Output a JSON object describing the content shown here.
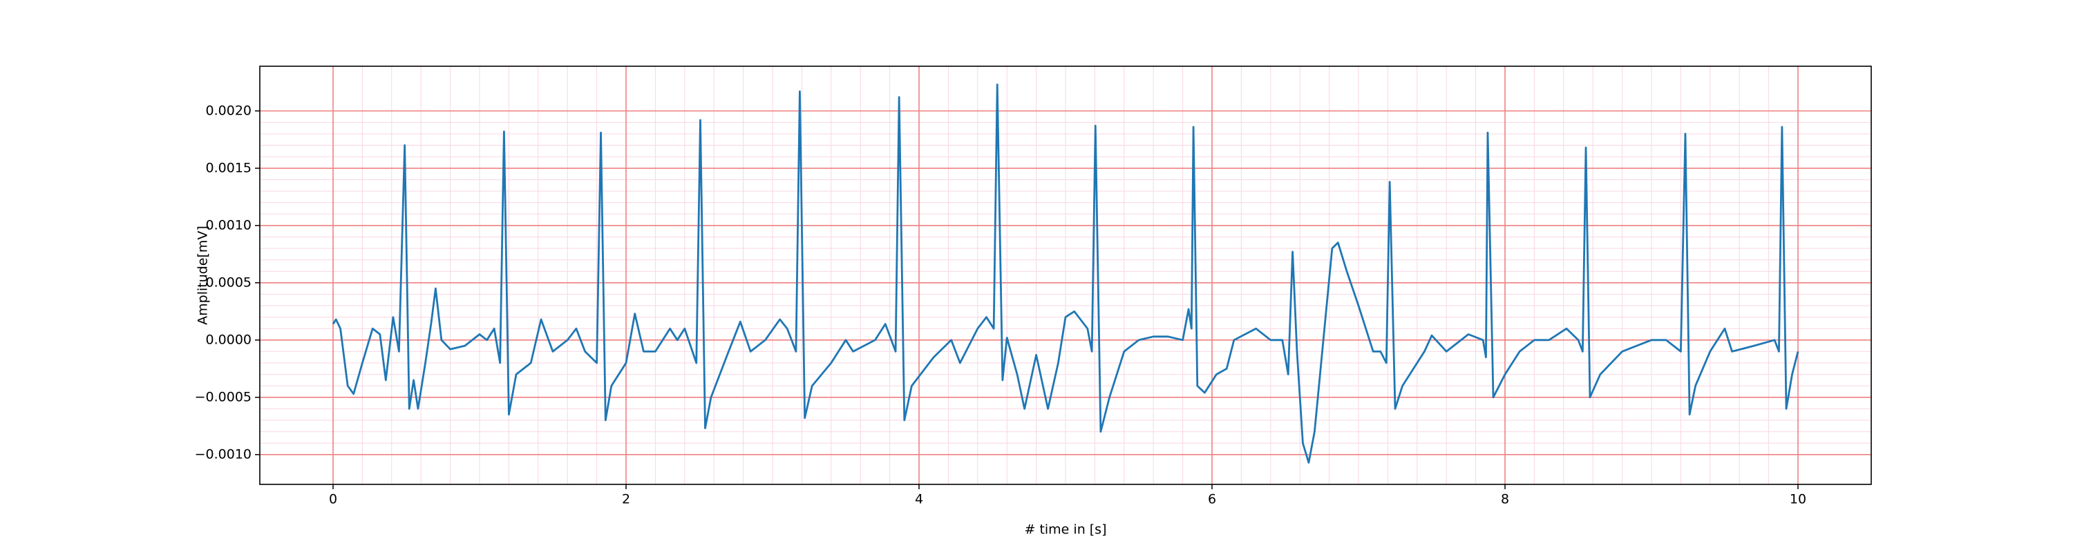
{
  "chart_data": {
    "type": "line",
    "xlabel": "# time in [s]",
    "ylabel": "Amplitude[mV]",
    "xlim": [
      -0.5,
      10.5
    ],
    "ylim": [
      -0.00126,
      0.00239
    ],
    "xticks": [
      0,
      2,
      4,
      6,
      8,
      10
    ],
    "yticks": [
      {
        "value": -0.001,
        "label": "−0.0010"
      },
      {
        "value": -0.0005,
        "label": "−0.0005"
      },
      {
        "value": 0,
        "label": "0.0000"
      },
      {
        "value": 0.0005,
        "label": "0.0005"
      },
      {
        "value": 0.001,
        "label": "0.0010"
      },
      {
        "value": 0.0015,
        "label": "0.0015"
      },
      {
        "value": 0.002,
        "label": "0.0020"
      }
    ],
    "grid": true,
    "minor_grid": true,
    "grid_color": "#f08080",
    "minor_grid_color": "#f9d6e4",
    "x": [
      0,
      0.02,
      0.05,
      0.1,
      0.14,
      0.2,
      0.27,
      0.32,
      0.36,
      0.41,
      0.45,
      0.489,
      0.52,
      0.55,
      0.58,
      0.63,
      0.67,
      0.7,
      0.74,
      0.8,
      0.9,
      1.0,
      1.05,
      1.1,
      1.14,
      1.167,
      1.2,
      1.25,
      1.35,
      1.42,
      1.5,
      1.6,
      1.66,
      1.72,
      1.8,
      1.828,
      1.86,
      1.9,
      2.0,
      2.06,
      2.12,
      2.2,
      2.3,
      2.35,
      2.4,
      2.48,
      2.507,
      2.54,
      2.58,
      2.7,
      2.78,
      2.85,
      2.95,
      3.05,
      3.1,
      3.16,
      3.186,
      3.22,
      3.27,
      3.4,
      3.5,
      3.55,
      3.7,
      3.77,
      3.84,
      3.864,
      3.9,
      3.95,
      4.1,
      4.22,
      4.28,
      4.4,
      4.46,
      4.51,
      4.534,
      4.57,
      4.6,
      4.67,
      4.72,
      4.8,
      4.88,
      4.95,
      5.0,
      5.06,
      5.15,
      5.18,
      5.204,
      5.24,
      5.3,
      5.4,
      5.5,
      5.6,
      5.7,
      5.8,
      5.84,
      5.86,
      5.873,
      5.9,
      5.95,
      6.03,
      6.1,
      6.15,
      6.3,
      6.4,
      6.48,
      6.52,
      6.55,
      6.58,
      6.62,
      6.66,
      6.7,
      6.76,
      6.82,
      6.86,
      6.92,
      7.0,
      7.05,
      7.1,
      7.15,
      7.19,
      7.213,
      7.25,
      7.3,
      7.45,
      7.5,
      7.6,
      7.75,
      7.85,
      7.87,
      7.882,
      7.92,
      8.0,
      8.1,
      8.2,
      8.3,
      8.42,
      8.5,
      8.53,
      8.552,
      8.58,
      8.65,
      8.8,
      8.9,
      9.0,
      9.1,
      9.2,
      9.231,
      9.26,
      9.3,
      9.4,
      9.5,
      9.55,
      9.7,
      9.84,
      9.87,
      9.891,
      9.92,
      9.96,
      10.0
    ],
    "series": [
      {
        "color": "#1f77b4",
        "values": [
          0.00014,
          0.00018,
          0.0001,
          -0.0004,
          -0.00047,
          -0.0002,
          0.0001,
          5e-05,
          -0.00035,
          0.0002,
          -0.0001,
          0.0017,
          -0.0006,
          -0.00035,
          -0.0006,
          -0.0002,
          0.00015,
          0.00045,
          0.0,
          -8e-05,
          -5e-05,
          5e-05,
          0.0,
          0.0001,
          -0.0002,
          0.00182,
          -0.00065,
          -0.0003,
          -0.0002,
          0.00018,
          -0.0001,
          0.0,
          0.0001,
          -0.0001,
          -0.0002,
          0.00181,
          -0.0007,
          -0.0004,
          -0.0002,
          0.00023,
          -0.0001,
          -0.0001,
          0.0001,
          0.0,
          0.0001,
          -0.0002,
          0.00192,
          -0.00077,
          -0.0005,
          -0.0001,
          0.00016,
          -0.0001,
          0.0,
          0.00018,
          0.0001,
          -0.0001,
          0.00217,
          -0.00068,
          -0.0004,
          -0.0002,
          0.0,
          -0.0001,
          0.0,
          0.00014,
          -0.0001,
          0.00212,
          -0.0007,
          -0.0004,
          -0.00015,
          0.0,
          -0.0002,
          0.0001,
          0.0002,
          0.0001,
          0.00223,
          -0.00035,
          2e-05,
          -0.0003,
          -0.0006,
          -0.00013,
          -0.0006,
          -0.0002,
          0.0002,
          0.00025,
          0.0001,
          -0.0001,
          0.00187,
          -0.0008,
          -0.0005,
          -0.0001,
          0.0,
          3e-05,
          3e-05,
          0.0,
          0.00027,
          0.0001,
          0.00186,
          -0.0004,
          -0.00046,
          -0.0003,
          -0.00025,
          0.0,
          0.0001,
          0.0,
          0.0,
          -0.0003,
          0.00077,
          -0.0001,
          -0.0009,
          -0.00107,
          -0.0008,
          0.0,
          0.0008,
          0.00085,
          0.0006,
          0.0003,
          0.0001,
          -0.0001,
          -0.0001,
          -0.0002,
          0.00138,
          -0.0006,
          -0.0004,
          -0.0001,
          4e-05,
          -0.0001,
          5e-05,
          0.0,
          -0.00015,
          0.00181,
          -0.0005,
          -0.0003,
          -0.0001,
          0.0,
          0.0,
          0.0001,
          0.0,
          -0.0001,
          0.00168,
          -0.0005,
          -0.0003,
          -0.0001,
          -5e-05,
          0.0,
          0.0,
          -0.0001,
          0.0018,
          -0.00065,
          -0.0004,
          -0.0001,
          0.0001,
          -0.0001,
          -5e-05,
          0.0,
          -0.0001,
          0.00186,
          -0.0006,
          -0.0003,
          -0.0001
        ]
      }
    ]
  }
}
